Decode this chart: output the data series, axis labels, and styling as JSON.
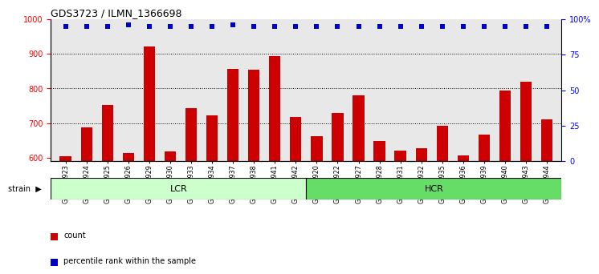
{
  "title": "GDS3723 / ILMN_1366698",
  "samples": [
    "GSM429923",
    "GSM429924",
    "GSM429925",
    "GSM429926",
    "GSM429929",
    "GSM429930",
    "GSM429933",
    "GSM429934",
    "GSM429937",
    "GSM429938",
    "GSM429941",
    "GSM429942",
    "GSM429920",
    "GSM429922",
    "GSM429927",
    "GSM429928",
    "GSM429931",
    "GSM429932",
    "GSM429935",
    "GSM429936",
    "GSM429939",
    "GSM429940",
    "GSM429943",
    "GSM429944"
  ],
  "counts": [
    604,
    688,
    752,
    613,
    921,
    619,
    742,
    723,
    857,
    853,
    893,
    718,
    663,
    729,
    781,
    647,
    621,
    628,
    693,
    607,
    666,
    793,
    820,
    710
  ],
  "percentile_ranks": [
    95,
    95,
    95,
    96,
    95,
    95,
    95,
    95,
    96,
    95,
    95,
    95,
    95,
    95,
    95,
    95,
    95,
    95,
    95,
    95,
    95,
    95,
    95,
    95
  ],
  "lcr_color": "#ccffcc",
  "hcr_color": "#66dd66",
  "bar_color": "#cc0000",
  "dot_color": "#0000cc",
  "ylim_left": [
    590,
    1000
  ],
  "ylim_right": [
    0,
    100
  ],
  "yticks_left": [
    600,
    700,
    800,
    900,
    1000
  ],
  "yticks_right": [
    0,
    25,
    50,
    75,
    100
  ],
  "grid_ticks": [
    700,
    800,
    900
  ],
  "bg_color": "#e8e8e8"
}
